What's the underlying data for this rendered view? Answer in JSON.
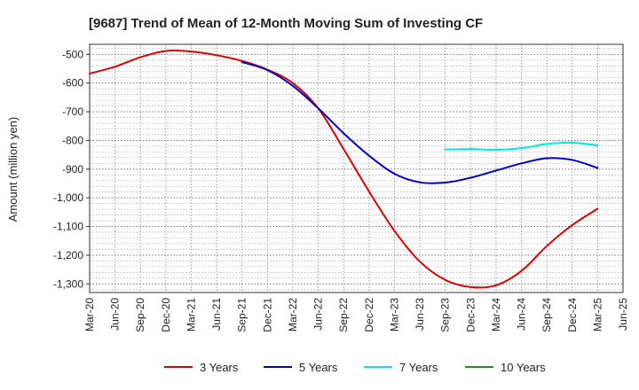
{
  "chart_data": {
    "type": "line",
    "title": "[9687]  Trend of Mean of 12-Month Moving Sum of Investing CF",
    "xlabel": "",
    "ylabel": "Amount (million yen)",
    "x_ticks": [
      "Mar-20",
      "Jun-20",
      "Sep-20",
      "Dec-20",
      "Mar-21",
      "Jun-21",
      "Sep-21",
      "Dec-21",
      "Mar-22",
      "Jun-22",
      "Sep-22",
      "Dec-22",
      "Mar-23",
      "Jun-23",
      "Sep-23",
      "Dec-23",
      "Mar-24",
      "Jun-24",
      "Sep-24",
      "Dec-24",
      "Mar-25",
      "Jun-25"
    ],
    "y_ticks": [
      -500,
      -600,
      -700,
      -800,
      -900,
      -1000,
      -1100,
      -1200,
      -1300
    ],
    "y_tick_labels": [
      "-500",
      "-600",
      "-700",
      "-800",
      "-900",
      "-1,000",
      "-1,100",
      "-1,200",
      "-1,300"
    ],
    "ylim": [
      -1330,
      -465
    ],
    "grid": true,
    "legend_position": "bottom",
    "series": [
      {
        "name": "3 Years",
        "color": "#dd0000",
        "x_index": [
          0,
          1,
          2,
          3,
          4,
          5,
          6,
          7,
          8,
          9,
          10,
          11,
          12,
          13,
          14,
          15,
          16,
          17,
          18,
          19,
          20
        ],
        "values": [
          -567,
          -543,
          -510,
          -488,
          -490,
          -503,
          -523,
          -553,
          -600,
          -688,
          -830,
          -978,
          -1115,
          -1222,
          -1286,
          -1311,
          -1305,
          -1255,
          -1168,
          -1095,
          -1038
        ]
      },
      {
        "name": "5 Years",
        "color": "#0000cc",
        "x_index": [
          6,
          7,
          8,
          9,
          10,
          11,
          12,
          13,
          14,
          15,
          16,
          17,
          18,
          19,
          20
        ],
        "values": [
          -527,
          -555,
          -610,
          -688,
          -775,
          -853,
          -916,
          -946,
          -947,
          -930,
          -905,
          -880,
          -862,
          -868,
          -896
        ]
      },
      {
        "name": "7 Years",
        "color": "#00e5e5",
        "x_index": [
          14,
          15,
          16,
          17,
          18,
          19,
          20
        ],
        "values": [
          -832,
          -830,
          -833,
          -827,
          -812,
          -808,
          -817
        ]
      },
      {
        "name": "10 Years",
        "color": "#228b22",
        "x_index": [],
        "values": []
      }
    ]
  }
}
